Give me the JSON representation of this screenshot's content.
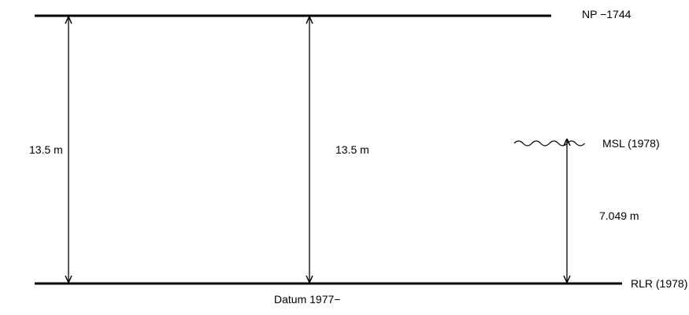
{
  "datums": {
    "top": {
      "label": "NP −1744"
    },
    "bottom": {
      "label": "RLR (1978)"
    },
    "bottom_caption": "Datum 1977−"
  },
  "water_level": {
    "label": "MSL (1978)"
  },
  "dimensions": {
    "left": {
      "label": "13.5 m"
    },
    "middle": {
      "label": "13.5 m"
    },
    "right": {
      "label": "7.049 m"
    }
  },
  "colors": {
    "line": "#000000",
    "background": "#ffffff"
  }
}
